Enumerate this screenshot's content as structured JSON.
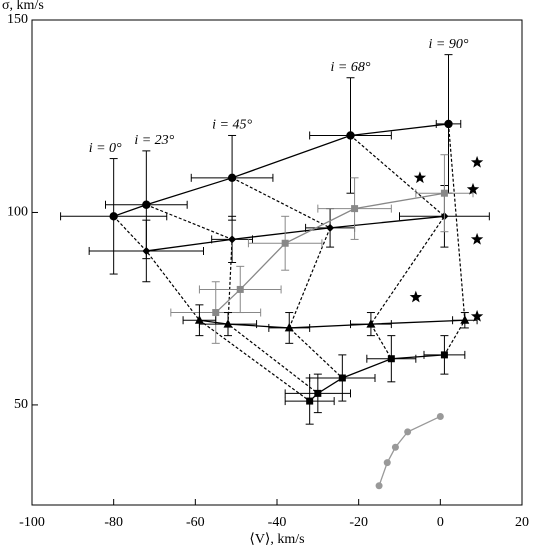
{
  "chart_data": {
    "type": "scatter",
    "x_label": "⟨V⟩, km/s",
    "y_label": "σ, km/s",
    "xlim": [
      -100,
      20
    ],
    "ylim": [
      24,
      150
    ],
    "xticks": [
      -100,
      -80,
      -60,
      -40,
      -20,
      0,
      20
    ],
    "yticks": [
      50,
      100,
      150
    ],
    "annotations": [
      "i = 0°",
      "i = 23°",
      "i = 45°",
      "i = 68°",
      "i = 90°"
    ],
    "series": [
      {
        "marker": "circle",
        "color": "#000000",
        "line": true,
        "x": [
          -80,
          -72,
          -51,
          -22,
          2
        ],
        "values": [
          99,
          102,
          109,
          120,
          123
        ],
        "xerr": [
          13,
          10,
          10,
          10,
          3
        ],
        "yerr": [
          15,
          14,
          11,
          15,
          18
        ]
      },
      {
        "marker": "diamond",
        "color": "#000000",
        "line": true,
        "x": [
          -72,
          -51,
          -27,
          1
        ],
        "values": [
          90,
          93,
          96,
          99
        ],
        "xerr": [
          14,
          5,
          6,
          11
        ],
        "yerr": [
          8,
          6,
          5,
          8
        ]
      },
      {
        "marker": "square",
        "color": "#888888",
        "line": true,
        "x": [
          -55,
          -49,
          -38,
          -21,
          1
        ],
        "values": [
          74,
          80,
          92,
          101,
          105
        ],
        "xerr": [
          11,
          10,
          9,
          9,
          7
        ],
        "yerr": [
          8,
          6,
          7,
          8,
          10
        ]
      },
      {
        "marker": "triangle",
        "color": "#000000",
        "line": true,
        "x": [
          -59,
          -52,
          -37,
          -17,
          6
        ],
        "values": [
          72,
          71,
          70,
          71,
          72
        ],
        "xerr": [
          4,
          7,
          5,
          5,
          3
        ],
        "yerr": [
          4,
          3,
          4,
          3,
          2
        ]
      },
      {
        "marker": "square",
        "color": "#000000",
        "line": true,
        "x": [
          -32,
          -30,
          -24,
          -12,
          1
        ],
        "values": [
          51,
          53,
          57,
          62,
          63
        ],
        "xerr": [
          6,
          8,
          8,
          6,
          5
        ],
        "yerr": [
          6,
          5,
          6,
          6,
          5
        ]
      },
      {
        "marker": "circle",
        "color": "#999999",
        "line": true,
        "x": [
          -15,
          -13,
          -11,
          -8,
          0
        ],
        "values": [
          29,
          35,
          39,
          43,
          47
        ]
      },
      {
        "marker": "star",
        "color": "#000000",
        "line": false,
        "x": [
          -5,
          8,
          9,
          9,
          -6,
          9
        ],
        "values": [
          109,
          106,
          113,
          93,
          78,
          73
        ]
      }
    ]
  }
}
